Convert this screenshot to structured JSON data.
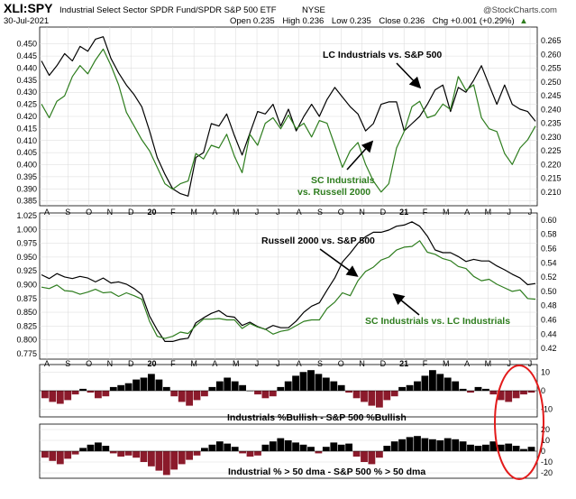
{
  "header": {
    "symbol": "XLI:SPY",
    "description": "Industrial Select Sector SPDR Fund/SPDR S&P 500 ETF",
    "exchange": "NYSE",
    "date": "30-Jul-2021",
    "open_label": "Open",
    "open": "0.235",
    "high_label": "High",
    "high": "0.236",
    "low_label": "Low",
    "low": "0.235",
    "close_label": "Close",
    "close": "0.236",
    "chg_label": "Chg",
    "chg": "+0.001 (+0.29%)",
    "chg_arrow": "▲",
    "watermark": "@StockCharts.com"
  },
  "colors": {
    "black": "#000000",
    "green": "#2e7d1e",
    "red": "#8b1a2b",
    "circle": "#e31b1b",
    "grid": "#d9d9d9"
  },
  "chart_data": [
    {
      "type": "line",
      "panel": "top",
      "x_month_ticks": [
        "A",
        "S",
        "O",
        "N",
        "D",
        "20",
        "F",
        "M",
        "A",
        "M",
        "J",
        "J",
        "A",
        "S",
        "O",
        "N",
        "D",
        "21",
        "F",
        "M",
        "A",
        "M",
        "J",
        "J"
      ],
      "left_axis": {
        "ylim": [
          0.383,
          0.457
        ],
        "ticks": [
          "0.450",
          "0.445",
          "0.440",
          "0.435",
          "0.430",
          "0.425",
          "0.420",
          "0.415",
          "0.410",
          "0.405",
          "0.400",
          "0.395",
          "0.390",
          "0.385"
        ]
      },
      "right_axis": {
        "ylim": [
          0.205,
          0.27
        ],
        "ticks": [
          "0.265",
          "0.260",
          "0.255",
          "0.250",
          "0.245",
          "0.240",
          "0.235",
          "0.230",
          "0.225",
          "0.220",
          "0.215",
          "0.210"
        ]
      },
      "series": [
        {
          "name": "LC Industrials vs. S&P 500",
          "axis": "left",
          "color": "black",
          "values": [
            0.443,
            0.437,
            0.441,
            0.446,
            0.443,
            0.449,
            0.447,
            0.452,
            0.453,
            0.444,
            0.438,
            0.433,
            0.429,
            0.424,
            0.414,
            0.403,
            0.396,
            0.39,
            0.388,
            0.387,
            0.403,
            0.405,
            0.417,
            0.416,
            0.421,
            0.412,
            0.404,
            0.413,
            0.422,
            0.421,
            0.425,
            0.416,
            0.423,
            0.414,
            0.42,
            0.425,
            0.42,
            0.427,
            0.432,
            0.428,
            0.424,
            0.421,
            0.414,
            0.417,
            0.425,
            0.426,
            0.426,
            0.414,
            0.417,
            0.42,
            0.425,
            0.431,
            0.433,
            0.422,
            0.432,
            0.43,
            0.435,
            0.441,
            0.433,
            0.425,
            0.433,
            0.425,
            0.423,
            0.422,
            0.418
          ]
        },
        {
          "name": "SC Industrials vs. Russell 2000",
          "axis": "right",
          "color": "green",
          "values": [
            0.242,
            0.237,
            0.243,
            0.245,
            0.252,
            0.256,
            0.253,
            0.258,
            0.262,
            0.256,
            0.249,
            0.239,
            0.234,
            0.229,
            0.225,
            0.219,
            0.213,
            0.211,
            0.213,
            0.214,
            0.224,
            0.222,
            0.227,
            0.226,
            0.231,
            0.223,
            0.217,
            0.231,
            0.227,
            0.235,
            0.237,
            0.233,
            0.238,
            0.233,
            0.235,
            0.23,
            0.236,
            0.235,
            0.227,
            0.219,
            0.225,
            0.228,
            0.22,
            0.214,
            0.21,
            0.213,
            0.226,
            0.232,
            0.241,
            0.243,
            0.237,
            0.238,
            0.242,
            0.24,
            0.252,
            0.247,
            0.249,
            0.237,
            0.233,
            0.232,
            0.224,
            0.22,
            0.226,
            0.229,
            0.234
          ]
        }
      ],
      "annotations": [
        "LC Industrials vs. S&P 500",
        "SC Industrials",
        "vs. Russell 2000"
      ]
    },
    {
      "type": "line",
      "panel": "middle",
      "x_month_ticks": [
        "A",
        "S",
        "O",
        "N",
        "D",
        "20",
        "F",
        "M",
        "A",
        "M",
        "J",
        "J",
        "A",
        "S",
        "O",
        "N",
        "D",
        "21",
        "F",
        "M",
        "A",
        "M",
        "J",
        "J"
      ],
      "left_axis": {
        "ylim": [
          0.765,
          1.03
        ],
        "ticks": [
          "1.025",
          "1.000",
          "0.975",
          "0.950",
          "0.925",
          "0.900",
          "0.875",
          "0.850",
          "0.825",
          "0.800",
          "0.775"
        ]
      },
      "right_axis": {
        "ylim": [
          0.405,
          0.61
        ],
        "ticks": [
          "0.60",
          "0.58",
          "0.56",
          "0.54",
          "0.52",
          "0.50",
          "0.48",
          "0.46",
          "0.44",
          "0.42"
        ]
      },
      "series": [
        {
          "name": "Russell 2000 vs. S&P 500",
          "axis": "left",
          "color": "black",
          "values": [
            0.918,
            0.911,
            0.92,
            0.914,
            0.911,
            0.915,
            0.912,
            0.905,
            0.912,
            0.903,
            0.905,
            0.901,
            0.893,
            0.882,
            0.843,
            0.818,
            0.797,
            0.797,
            0.801,
            0.803,
            0.831,
            0.84,
            0.848,
            0.853,
            0.843,
            0.841,
            0.826,
            0.832,
            0.824,
            0.819,
            0.826,
            0.822,
            0.822,
            0.834,
            0.85,
            0.861,
            0.867,
            0.89,
            0.912,
            0.941,
            0.957,
            0.975,
            0.987,
            0.995,
            0.995,
            0.999,
            1.006,
            1.008,
            1.014,
            1.006,
            0.988,
            0.963,
            0.958,
            0.958,
            0.951,
            0.942,
            0.946,
            0.943,
            0.943,
            0.934,
            0.927,
            0.919,
            0.912,
            0.9,
            0.902
          ]
        },
        {
          "name": "SC Industrials vs. LC Industrials",
          "axis": "right",
          "color": "green",
          "values": [
            0.506,
            0.504,
            0.509,
            0.501,
            0.5,
            0.496,
            0.499,
            0.503,
            0.498,
            0.499,
            0.493,
            0.498,
            0.494,
            0.489,
            0.458,
            0.437,
            0.434,
            0.437,
            0.443,
            0.441,
            0.452,
            0.461,
            0.461,
            0.462,
            0.46,
            0.46,
            0.448,
            0.455,
            0.45,
            0.447,
            0.44,
            0.444,
            0.446,
            0.452,
            0.458,
            0.46,
            0.46,
            0.476,
            0.485,
            0.498,
            0.494,
            0.515,
            0.528,
            0.534,
            0.544,
            0.548,
            0.558,
            0.562,
            0.563,
            0.571,
            0.555,
            0.552,
            0.546,
            0.543,
            0.535,
            0.532,
            0.521,
            0.515,
            0.517,
            0.51,
            0.505,
            0.5,
            0.502,
            0.49,
            0.489
          ]
        }
      ],
      "annotations": [
        "Russell 2000 vs. S&P 500",
        "SC Industrials vs. LC Industrials"
      ]
    },
    {
      "type": "bar",
      "panel": "bullish",
      "title": "Industrials %Bullish - S&P 500 %Bullish",
      "ylim": [
        -14,
        14
      ],
      "ticks": [
        "10",
        "0",
        "-10"
      ],
      "values": [
        -4,
        -6,
        -7,
        -5,
        -2,
        1,
        -1,
        -4,
        -3,
        2,
        3,
        4,
        6,
        7,
        9,
        6,
        2,
        -3,
        -6,
        -8,
        -5,
        -3,
        2,
        5,
        7,
        5,
        3,
        0,
        -2,
        -4,
        -3,
        2,
        5,
        8,
        10,
        11,
        9,
        7,
        5,
        3,
        -1,
        -4,
        -6,
        -8,
        -9,
        -5,
        -3,
        2,
        3,
        5,
        8,
        11,
        9,
        7,
        5,
        1,
        -1,
        2,
        1,
        -2,
        -5,
        -6,
        -4,
        -2,
        -1
      ],
      "highlight": "circle"
    },
    {
      "type": "bar",
      "panel": "dma",
      "title": "Industrial % > 50 dma - S&P 500 % > 50 dma",
      "ylim": [
        -25,
        25
      ],
      "ticks": [
        "20",
        "10",
        "0",
        "-10",
        "-20"
      ],
      "values": [
        -6,
        -9,
        -12,
        -7,
        -3,
        3,
        6,
        8,
        5,
        -2,
        -5,
        -4,
        -6,
        -10,
        -14,
        -18,
        -22,
        -17,
        -12,
        -8,
        -4,
        3,
        6,
        9,
        7,
        4,
        -2,
        -5,
        -4,
        6,
        9,
        12,
        10,
        8,
        6,
        4,
        -2,
        4,
        8,
        6,
        7,
        -5,
        -10,
        -12,
        -6,
        5,
        9,
        11,
        13,
        14,
        12,
        11,
        10,
        12,
        11,
        9,
        6,
        5,
        6,
        9,
        6,
        7,
        5,
        2,
        4
      ],
      "highlight": "circle"
    }
  ]
}
